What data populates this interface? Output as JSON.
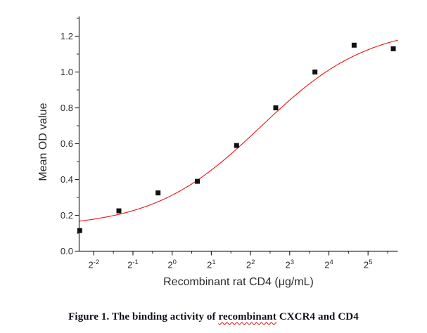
{
  "chart_data": {
    "type": "scatter",
    "title": "",
    "xlabel": "Recombinant rat CD4 (μg/mL)",
    "ylabel": "Mean OD value",
    "x_scale": "log2",
    "x_tick_base": "2",
    "x_tick_exponents": [
      -2,
      -1,
      0,
      1,
      2,
      3,
      4,
      5
    ],
    "y_tick_labels": [
      "0.0",
      "0.2",
      "0.4",
      "0.6",
      "0.8",
      "1.0",
      "1.2"
    ],
    "y_tick_values": [
      0.0,
      0.2,
      0.4,
      0.6,
      0.8,
      1.0,
      1.2
    ],
    "xlim_log2": [
      -2.373,
      5.76
    ],
    "ylim": [
      0,
      1.31
    ],
    "grid": false,
    "legend": null,
    "points": [
      {
        "x": 0.195,
        "y": 0.115
      },
      {
        "x": 0.39,
        "y": 0.225
      },
      {
        "x": 0.78,
        "y": 0.325
      },
      {
        "x": 1.5625,
        "y": 0.39
      },
      {
        "x": 3.125,
        "y": 0.59
      },
      {
        "x": 6.25,
        "y": 0.8
      },
      {
        "x": 12.5,
        "y": 1.0
      },
      {
        "x": 25,
        "y": 1.15
      },
      {
        "x": 50,
        "y": 1.13
      }
    ],
    "marker": {
      "shape": "square",
      "color": "#111111",
      "size": 7
    },
    "fit_curve": {
      "model": "4PL",
      "bottom": 0.13,
      "top": 1.26,
      "ec50": 4.8,
      "hill": 1.05,
      "color": "#ee1111"
    },
    "axis_color": "#2a2a2a"
  },
  "caption": {
    "prefix": "Figure 1. The binding activity of ",
    "misspelled_word": "recombinant",
    "suffix": " CXCR4 and CD4",
    "color": "#10101a",
    "spellcheck_underline_color": "#e00000"
  }
}
